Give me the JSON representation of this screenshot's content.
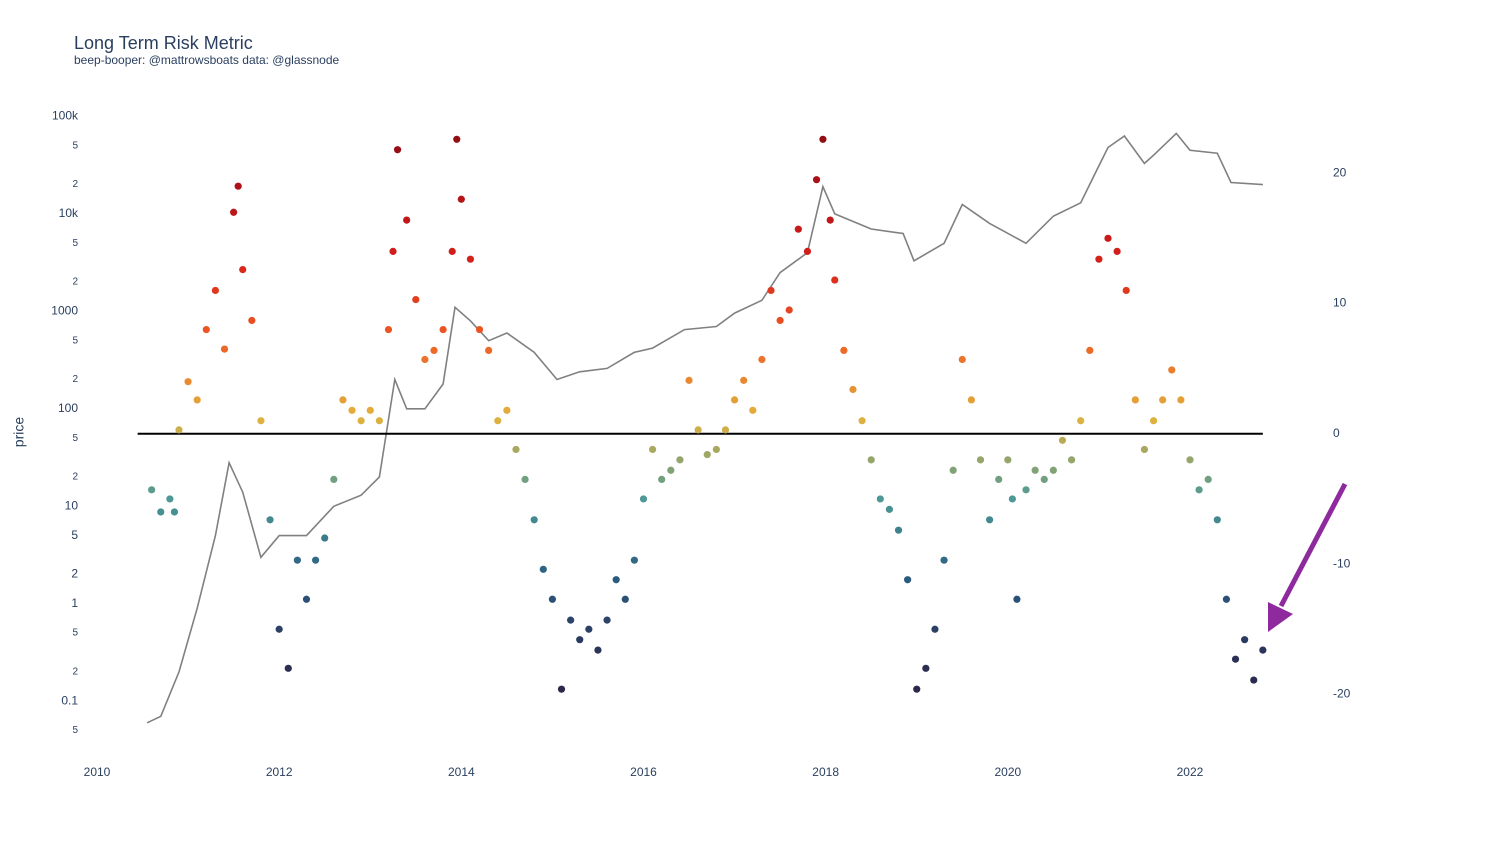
{
  "chart_data": {
    "type": "scatter",
    "title": "Long Term Risk Metric",
    "subtitle": "beep-booper: @mattrowsboats data: @glassnode",
    "y_label": "price",
    "xlim": [
      2010,
      2023.4
    ],
    "xticks": [
      2010,
      2012,
      2014,
      2016,
      2018,
      2020,
      2022
    ],
    "log_y": true,
    "ylim": [
      0.04,
      166000
    ],
    "yticks": [
      {
        "value": 100000,
        "label": "100k"
      },
      {
        "value": 50000,
        "label": "5"
      },
      {
        "value": 20000,
        "label": "2"
      },
      {
        "value": 10000,
        "label": "10k"
      },
      {
        "value": 5000,
        "label": "5"
      },
      {
        "value": 2000,
        "label": "2"
      },
      1000,
      {
        "value": 500,
        "label": "5"
      },
      {
        "value": 200,
        "label": "2"
      },
      100,
      {
        "value": 50,
        "label": "5"
      },
      {
        "value": 20,
        "label": "2"
      },
      10,
      5,
      2,
      1,
      {
        "value": 0.5,
        "label": "5"
      },
      {
        "value": 0.2,
        "label": "2"
      },
      0.1,
      {
        "value": 0.05,
        "label": "5"
      }
    ],
    "y2lim": [
      -23.5,
      26
    ],
    "y2ticks": [
      -20,
      -10,
      0,
      10,
      20
    ],
    "hline": {
      "value": 0,
      "axis": "y2",
      "color": "#000000"
    },
    "series": [
      {
        "type": "line",
        "color": "#808080",
        "x": [
          2010.55,
          2010.7,
          2010.9,
          2011.1,
          2011.3,
          2011.45,
          2011.6,
          2011.8,
          2012.0,
          2012.3,
          2012.6,
          2012.9,
          2013.1,
          2013.27,
          2013.4,
          2013.6,
          2013.8,
          2013.93,
          2014.1,
          2014.3,
          2014.5,
          2014.8,
          2015.05,
          2015.3,
          2015.6,
          2015.9,
          2016.1,
          2016.45,
          2016.8,
          2017.0,
          2017.3,
          2017.5,
          2017.8,
          2017.97,
          2018.1,
          2018.5,
          2018.85,
          2018.97,
          2019.3,
          2019.5,
          2019.8,
          2020.2,
          2020.5,
          2020.8,
          2020.95,
          2021.1,
          2021.28,
          2021.5,
          2021.6,
          2021.85,
          2022.0,
          2022.3,
          2022.45,
          2022.8
        ],
        "values": [
          0.06,
          0.07,
          0.2,
          0.9,
          5,
          28,
          14,
          3,
          5,
          5,
          10,
          13,
          20,
          200,
          100,
          100,
          180,
          1100,
          800,
          500,
          600,
          380,
          200,
          240,
          260,
          380,
          420,
          650,
          700,
          960,
          1300,
          2500,
          4000,
          19000,
          10000,
          7000,
          6300,
          3300,
          5000,
          12500,
          8000,
          5000,
          9500,
          13000,
          25000,
          48000,
          63000,
          33000,
          40000,
          67000,
          45000,
          42000,
          21000,
          20000
        ]
      },
      {
        "type": "scatter",
        "axis": "y2",
        "colorscale": [
          "#2a1b3d",
          "#2b2f55",
          "#2a5c80",
          "#4e9a96",
          "#e3b23c",
          "#ee5a24",
          "#d41f1a",
          "#a80f16",
          "#7a0a10"
        ],
        "x": [
          2010.6,
          2010.7,
          2010.8,
          2010.85,
          2010.9,
          2011.0,
          2011.1,
          2011.2,
          2011.3,
          2011.4,
          2011.5,
          2011.55,
          2011.6,
          2011.7,
          2011.8,
          2011.9,
          2012.0,
          2012.1,
          2012.2,
          2012.3,
          2012.4,
          2012.5,
          2012.6,
          2012.7,
          2012.8,
          2012.9,
          2013.0,
          2013.1,
          2013.2,
          2013.25,
          2013.3,
          2013.4,
          2013.5,
          2013.6,
          2013.7,
          2013.8,
          2013.9,
          2013.95,
          2014.0,
          2014.1,
          2014.2,
          2014.3,
          2014.4,
          2014.5,
          2014.6,
          2014.7,
          2014.8,
          2014.9,
          2015.0,
          2015.1,
          2015.2,
          2015.3,
          2015.4,
          2015.5,
          2015.6,
          2015.7,
          2015.8,
          2015.9,
          2016.0,
          2016.1,
          2016.2,
          2016.3,
          2016.4,
          2016.5,
          2016.6,
          2016.7,
          2016.8,
          2016.9,
          2017.0,
          2017.1,
          2017.2,
          2017.3,
          2017.4,
          2017.5,
          2017.6,
          2017.7,
          2017.8,
          2017.9,
          2017.97,
          2018.05,
          2018.1,
          2018.2,
          2018.3,
          2018.4,
          2018.5,
          2018.6,
          2018.7,
          2018.8,
          2018.9,
          2019.0,
          2019.1,
          2019.2,
          2019.3,
          2019.4,
          2019.5,
          2019.6,
          2019.7,
          2019.8,
          2019.9,
          2020.0,
          2020.05,
          2020.1,
          2020.2,
          2020.3,
          2020.4,
          2020.5,
          2020.6,
          2020.7,
          2020.8,
          2020.9,
          2021.0,
          2021.1,
          2021.2,
          2021.3,
          2021.4,
          2021.5,
          2021.6,
          2021.7,
          2021.8,
          2021.9,
          2022.0,
          2022.1,
          2022.2,
          2022.3,
          2022.4,
          2022.5,
          2022.6,
          2022.7,
          2022.8
        ],
        "values": [
          -4.3,
          -6,
          -5,
          -6,
          0.3,
          4,
          2.6,
          8,
          11,
          6.5,
          17,
          19,
          12.6,
          8.7,
          1,
          -6.6,
          -15,
          -18,
          -9.7,
          -12.7,
          -9.7,
          -8,
          -3.5,
          2.6,
          1.8,
          1,
          1.8,
          1,
          8,
          14,
          21.8,
          16.4,
          10.3,
          5.7,
          6.4,
          8,
          14,
          22.6,
          18,
          13.4,
          8,
          6.4,
          1,
          1.8,
          -1.2,
          -3.5,
          -6.6,
          -10.4,
          -12.7,
          -19.6,
          -14.3,
          -15.8,
          -15,
          -16.6,
          -14.3,
          -11.2,
          -12.7,
          -9.7,
          -5,
          -1.2,
          -3.5,
          -2.8,
          -2,
          4.1,
          0.3,
          -1.6,
          -1.2,
          0.3,
          2.6,
          4.1,
          1.8,
          5.7,
          11,
          8.7,
          9.5,
          15.7,
          14,
          19.5,
          22.6,
          16.4,
          11.8,
          6.4,
          3.4,
          1,
          -2,
          -5,
          -5.8,
          -7.4,
          -11.2,
          -19.6,
          -18,
          -15,
          -9.7,
          -2.8,
          5.7,
          2.6,
          -2,
          -6.6,
          -3.5,
          -2,
          -5,
          -12.7,
          -4.3,
          -2.8,
          -3.5,
          -2.8,
          -0.5,
          -2,
          1,
          6.4,
          13.4,
          15,
          14,
          11,
          2.6,
          -1.2,
          1,
          2.6,
          4.9,
          2.6,
          -2,
          -4.3,
          -3.5,
          -6.6,
          -12.7,
          -17.3,
          -15.8,
          -18.9,
          -16.6
        ]
      }
    ]
  }
}
